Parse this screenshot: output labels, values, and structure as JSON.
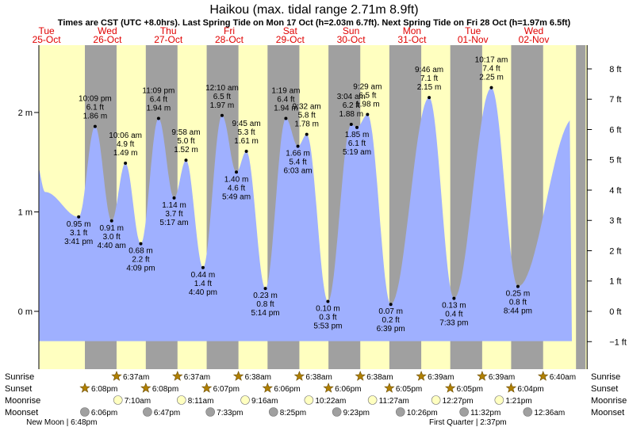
{
  "title": "Haikou (max. tidal range 2.71m 8.9ft)",
  "subtitle": "Times are CST (UTC +8.0hrs). Last Spring Tide on Mon 17 Oct (h=2.03m 6.7ft). Next Spring Tide on Fri 28 Oct (h=1.97m 6.5ft)",
  "colors": {
    "day": "#ffffc0",
    "night": "#a0a0a0",
    "tide": "#9fb0ff",
    "date": "#e00000",
    "sun": "#b08000",
    "moon_up": "#ffffc0",
    "moon_down": "#a0a0a0"
  },
  "days": [
    {
      "dow": "Tue",
      "date": "25-Oct"
    },
    {
      "dow": "Wed",
      "date": "26-Oct"
    },
    {
      "dow": "Thu",
      "date": "27-Oct"
    },
    {
      "dow": "Fri",
      "date": "28-Oct"
    },
    {
      "dow": "Sat",
      "date": "29-Oct"
    },
    {
      "dow": "Sun",
      "date": "30-Oct"
    },
    {
      "dow": "Mon",
      "date": "31-Oct"
    },
    {
      "dow": "Tue",
      "date": "01-Nov"
    },
    {
      "dow": "Wed",
      "date": "02-Nov"
    }
  ],
  "chart_data": {
    "type": "area",
    "xlabel": "",
    "ylabel": "",
    "x_range_hours": [
      0,
      216
    ],
    "y_range_m": [
      -0.3,
      2.71
    ],
    "left_axis_ticks": [
      {
        "v": 0,
        "label": "0 m"
      },
      {
        "v": 1,
        "label": "1 m"
      },
      {
        "v": 2,
        "label": "2 m"
      }
    ],
    "right_axis_ticks": [
      {
        "ft": -1,
        "label": "−1 ft"
      },
      {
        "ft": 0,
        "label": "0 ft"
      },
      {
        "ft": 1,
        "label": "1 ft"
      },
      {
        "ft": 2,
        "label": "2 ft"
      },
      {
        "ft": 3,
        "label": "3 ft"
      },
      {
        "ft": 4,
        "label": "4 ft"
      },
      {
        "ft": 5,
        "label": "5 ft"
      },
      {
        "ft": 6,
        "label": "6 ft"
      },
      {
        "ft": 7,
        "label": "7 ft"
      },
      {
        "ft": 8,
        "label": "8 ft"
      }
    ],
    "tides": [
      {
        "t": "3:41 pm",
        "h": 0.95,
        "m": "0.95 m",
        "ft": "3.1 ft",
        "type": "low"
      },
      {
        "t": "10:09 pm",
        "h": 1.86,
        "m": "1.86 m",
        "ft": "6.1 ft",
        "type": "high"
      },
      {
        "t": "4:40 am",
        "h": 0.91,
        "m": "0.91 m",
        "ft": "3.0 ft",
        "type": "low"
      },
      {
        "t": "10:06 am",
        "h": 1.49,
        "m": "1.49 m",
        "ft": "4.9 ft",
        "type": "high"
      },
      {
        "t": "4:09 pm",
        "h": 0.68,
        "m": "0.68 m",
        "ft": "2.2 ft",
        "type": "low"
      },
      {
        "t": "11:09 pm",
        "h": 1.94,
        "m": "1.94 m",
        "ft": "6.4 ft",
        "type": "high"
      },
      {
        "t": "5:17 am",
        "h": 1.14,
        "m": "1.14 m",
        "ft": "3.7 ft",
        "type": "low"
      },
      {
        "t": "9:58 am",
        "h": 1.52,
        "m": "1.52 m",
        "ft": "5.0 ft",
        "type": "high"
      },
      {
        "t": "4:40 pm",
        "h": 0.44,
        "m": "0.44 m",
        "ft": "1.4 ft",
        "type": "low"
      },
      {
        "t": "12:10 am",
        "h": 1.97,
        "m": "1.97 m",
        "ft": "6.5 ft",
        "type": "high"
      },
      {
        "t": "5:49 am",
        "h": 1.4,
        "m": "1.40 m",
        "ft": "4.6 ft",
        "type": "low"
      },
      {
        "t": "9:45 am",
        "h": 1.61,
        "m": "1.61 m",
        "ft": "5.3 ft",
        "type": "high"
      },
      {
        "t": "5:14 pm",
        "h": 0.23,
        "m": "0.23 m",
        "ft": "0.8 ft",
        "type": "low"
      },
      {
        "t": "1:19 am",
        "h": 1.94,
        "m": "1.94 m",
        "ft": "6.4 ft",
        "type": "high"
      },
      {
        "t": "6:03 am",
        "h": 1.66,
        "m": "1.66 m",
        "ft": "5.4 ft",
        "type": "low"
      },
      {
        "t": "9:32 am",
        "h": 1.78,
        "m": "1.78 m",
        "ft": "5.8 ft",
        "type": "high"
      },
      {
        "t": "5:53 pm",
        "h": 0.1,
        "m": "0.10 m",
        "ft": "0.3 ft",
        "type": "low"
      },
      {
        "t": "3:04 am",
        "h": 1.88,
        "m": "1.88 m",
        "ft": "6.2 ft",
        "type": "high"
      },
      {
        "t": "5:19 am",
        "h": 1.85,
        "m": "1.85 m",
        "ft": "6.1 ft",
        "type": "low"
      },
      {
        "t": "9:29 am",
        "h": 1.98,
        "m": "1.98 m",
        "ft": "6.5 ft",
        "type": "high"
      },
      {
        "t": "6:39 pm",
        "h": 0.07,
        "m": "0.07 m",
        "ft": "0.2 ft",
        "type": "low"
      },
      {
        "t": "9:46 am",
        "h": 2.15,
        "m": "2.15 m",
        "ft": "7.1 ft",
        "type": "high"
      },
      {
        "t": "7:33 pm",
        "h": 0.13,
        "m": "0.13 m",
        "ft": "0.4 ft",
        "type": "low"
      },
      {
        "t": "10:17 am",
        "h": 2.25,
        "m": "2.25 m",
        "ft": "7.4 ft",
        "type": "high"
      },
      {
        "t": "8:44 pm",
        "h": 0.25,
        "m": "0.25 m",
        "ft": "0.8 ft",
        "type": "low"
      }
    ]
  },
  "sun": {
    "sunrise_label": "Sunrise",
    "sunset_label": "Sunset",
    "sunrise": [
      "6:37am",
      "6:37am",
      "6:38am",
      "6:38am",
      "6:38am",
      "6:39am",
      "6:39am",
      "6:40am"
    ],
    "sunset": [
      "6:08pm",
      "6:08pm",
      "6:07pm",
      "6:06pm",
      "6:06pm",
      "6:05pm",
      "6:05pm",
      "6:04pm"
    ]
  },
  "moon": {
    "moonrise_label": "Moonrise",
    "moonset_label": "Moonset",
    "moonrise": [
      "7:10am",
      "8:11am",
      "9:16am",
      "10:22am",
      "11:27am",
      "12:27pm",
      "1:21pm"
    ],
    "moonset": [
      "6:06pm",
      "6:47pm",
      "7:33pm",
      "8:25pm",
      "9:23pm",
      "10:26pm",
      "11:32pm",
      "12:36am"
    ],
    "new_moon": "New Moon | 6:48pm",
    "first_quarter": "First Quarter | 2:37pm"
  }
}
